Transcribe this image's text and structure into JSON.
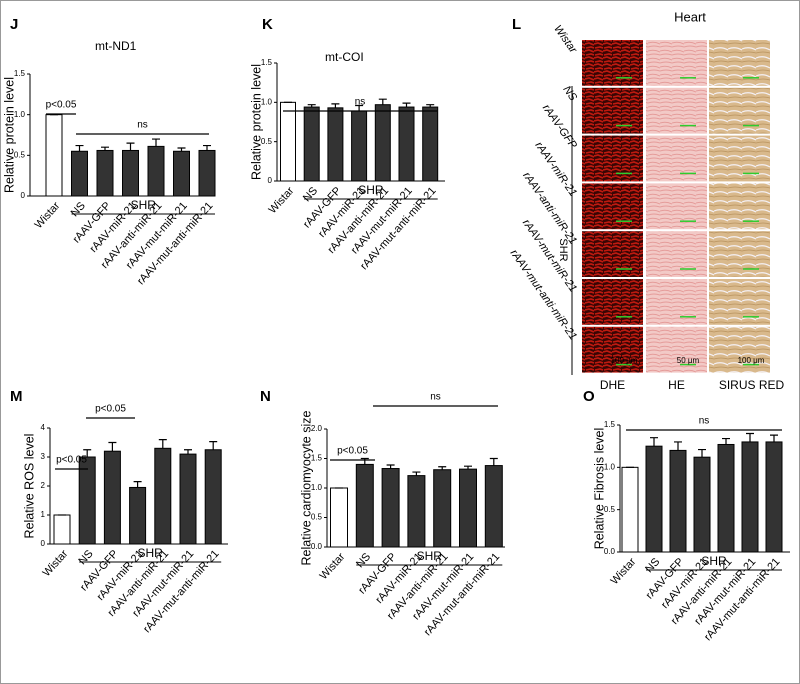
{
  "chart_data": [
    {
      "type": "bar",
      "panel": "J",
      "title": "mt-ND1",
      "ylabel": "Relative protein level",
      "categories": [
        "Wistar",
        "NS",
        "rAAV-GFP",
        "rAAV-miR-21",
        "rAAV-anti-miR-21",
        "rAAV-mut-miR-21",
        "rAAV-mut-anti-miR-21"
      ],
      "values": [
        1.0,
        0.55,
        0.56,
        0.56,
        0.61,
        0.55,
        0.56
      ],
      "errors": [
        0,
        0.07,
        0.04,
        0.09,
        0.09,
        0.04,
        0.06
      ],
      "bar_colors": [
        "#ffffff",
        "#333333",
        "#333333",
        "#333333",
        "#333333",
        "#333333",
        "#333333"
      ],
      "ylim": [
        0,
        1.5
      ],
      "yticks": [
        0,
        0.5,
        {
          "value": 1,
          "label": "1.0"
        },
        1.5
      ],
      "annotations": [
        "p<0.05",
        "ns"
      ],
      "group_label": "SHR"
    },
    {
      "type": "bar",
      "panel": "K",
      "title": "mt-COI",
      "ylabel": "Relative protein level",
      "categories": [
        "Wistar",
        "NS",
        "rAAV-GFP",
        "rAAV-miR-21",
        "rAAV-anti-miR-21",
        "rAAV-mut-miR-21",
        "rAAV-mut-anti-miR-21"
      ],
      "values": [
        1.0,
        0.94,
        0.93,
        0.89,
        0.97,
        0.94,
        0.94
      ],
      "errors": [
        0,
        0.03,
        0.05,
        0.07,
        0.07,
        0.05,
        0.03
      ],
      "bar_colors": [
        "#ffffff",
        "#333333",
        "#333333",
        "#333333",
        "#333333",
        "#333333",
        "#333333"
      ],
      "ylim": [
        0,
        1.5
      ],
      "yticks": [
        0,
        0.5,
        {
          "value": 1,
          "label": "1.0"
        },
        1.5
      ],
      "annotations": [
        "ns"
      ],
      "group_label": "SHR"
    },
    {
      "type": "bar",
      "panel": "M",
      "ylabel": "Relative ROS level",
      "categories": [
        "Wistar",
        "NS",
        "rAAV-GFP",
        "rAAV-miR-21",
        "rAAV-anti-miR-21",
        "rAAV-mut-miR-21",
        "rAAV-mut-anti-miR-21"
      ],
      "values": [
        1.0,
        3.0,
        3.2,
        1.95,
        3.3,
        3.1,
        3.25
      ],
      "errors": [
        0,
        0.25,
        0.3,
        0.2,
        0.3,
        0.15,
        0.28
      ],
      "bar_colors": [
        "#ffffff",
        "#333333",
        "#333333",
        "#333333",
        "#333333",
        "#333333",
        "#333333"
      ],
      "ylim": [
        0,
        4
      ],
      "yticks": [
        0,
        1,
        2,
        3,
        4
      ],
      "annotations": [
        "p<0.05",
        "p<0.05"
      ],
      "group_label": "SHR"
    },
    {
      "type": "bar",
      "panel": "N",
      "ylabel": "Relative cardiomyocyte size",
      "categories": [
        "Wistar",
        "NS",
        "rAAV-GFP",
        "rAAV-miR-21",
        "rAAV-anti-miR-21",
        "rAAV-mut-miR-21",
        "rAAV-mut-anti-miR-21"
      ],
      "values": [
        1.0,
        1.4,
        1.33,
        1.21,
        1.31,
        1.32,
        1.38
      ],
      "errors": [
        0,
        0.1,
        0.06,
        0.06,
        0.05,
        0.05,
        0.12
      ],
      "bar_colors": [
        "#ffffff",
        "#333333",
        "#333333",
        "#333333",
        "#333333",
        "#333333",
        "#333333"
      ],
      "ylim": [
        0,
        2
      ],
      "yticks": [
        {
          "value": 0,
          "label": "0.0"
        },
        0.5,
        {
          "value": 1,
          "label": "1.0"
        },
        1.5,
        {
          "value": 2,
          "label": "2.0"
        }
      ],
      "annotations": [
        "p<0.05",
        "ns"
      ],
      "group_label": "SHR"
    },
    {
      "type": "bar",
      "panel": "O",
      "ylabel": "Relative Fibrosis level",
      "categories": [
        "Wistar",
        "NS",
        "rAAV-GFP",
        "rAAV-miR-21",
        "rAAV-anti-miR-21",
        "rAAV-mut-miR-21",
        "rAAV-mut-anti-miR-21"
      ],
      "values": [
        1.0,
        1.25,
        1.2,
        1.12,
        1.27,
        1.3,
        1.3
      ],
      "errors": [
        0,
        0.1,
        0.1,
        0.09,
        0.07,
        0.1,
        0.08
      ],
      "bar_colors": [
        "#ffffff",
        "#333333",
        "#333333",
        "#333333",
        "#333333",
        "#333333",
        "#333333"
      ],
      "ylim": [
        0,
        1.5
      ],
      "yticks": [
        {
          "value": 0,
          "label": "0.0"
        },
        0.5,
        {
          "value": 1,
          "label": "1.0"
        },
        1.5
      ],
      "annotations": [
        "ns"
      ],
      "group_label": "SHR"
    }
  ],
  "image_panel": {
    "panel": "L",
    "title": "Heart",
    "rows": [
      "Wistar",
      "NS",
      "rAAV-GFP",
      "rAAV-miR-21",
      "rAAV-anti-miR-21",
      "rAAV-mut-miR-21",
      "rAAV-mut-anti-miR-21"
    ],
    "group_label": "SHR",
    "columns": [
      "DHE",
      "HE",
      "SIRUS RED"
    ],
    "scale_bars": [
      "100 μm",
      "50 μm",
      "100 μm"
    ]
  }
}
